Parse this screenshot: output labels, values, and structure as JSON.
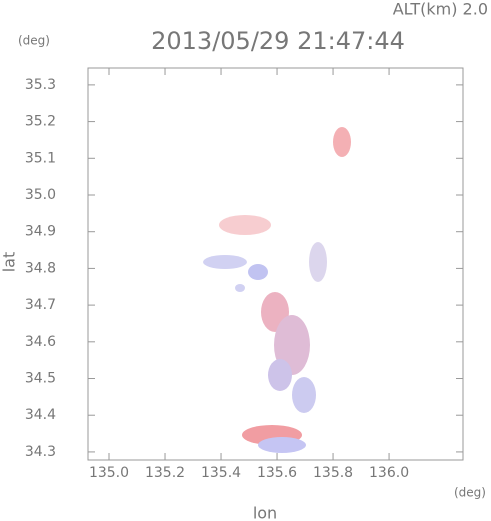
{
  "chart_data": {
    "type": "map",
    "title": "2013/05/29 21:47:44",
    "altitude_label": "ALT(km) 2.0",
    "xlabel": "lon",
    "ylabel": "lat",
    "x_unit": "(deg)",
    "y_unit": "(deg)",
    "xlim": [
      134.925,
      136.264
    ],
    "ylim": [
      34.278,
      35.346
    ],
    "xticks": [
      {
        "value": 135.0,
        "label": "135.0"
      },
      135.2,
      135.4,
      135.6,
      135.8,
      {
        "value": 136.0,
        "label": "136.0"
      }
    ],
    "yticks": [
      34.3,
      34.4,
      34.5,
      34.6,
      34.7,
      34.8,
      34.9,
      {
        "value": 35.0,
        "label": "35.0"
      },
      35.1,
      35.2,
      35.3
    ]
  }
}
